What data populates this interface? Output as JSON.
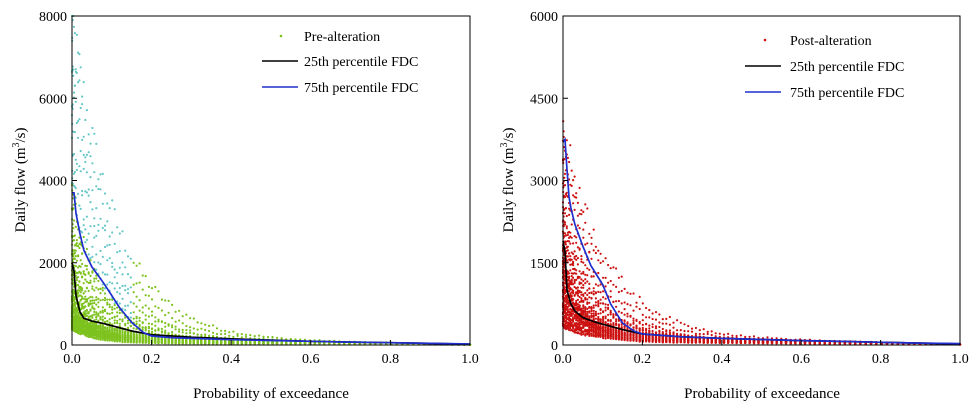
{
  "chart_data": [
    {
      "type": "line",
      "panel": "left",
      "xlabel": "Probability of exceedance",
      "ylabel_main": "Daily flow (m",
      "ylabel_sup": "3",
      "ylabel_tail": "/s)",
      "xlim": [
        0,
        1.0
      ],
      "ylim": [
        0,
        8000
      ],
      "xticks": [
        0.0,
        0.2,
        0.4,
        0.6,
        0.8,
        1.0
      ],
      "xtick_labels": [
        "0.0",
        "0.2",
        "0.4",
        "0.6",
        "0.8",
        "1.0"
      ],
      "yticks": [
        0,
        2000,
        4000,
        6000,
        8000
      ],
      "ytick_labels": [
        "0",
        "2000",
        "4000",
        "6000",
        "8000"
      ],
      "grid": false,
      "legend_position": "top-right",
      "scatter_series": {
        "name": "Pre-alteration",
        "color": "#7dc21e",
        "peaks": [
          7800,
          7000,
          6200,
          5400,
          4600,
          3800,
          3600,
          3200,
          2900,
          2600,
          2400,
          2200,
          2000,
          1900,
          1800,
          1700,
          1600,
          1500,
          1400,
          1300,
          1200,
          1150,
          1100,
          1050,
          1000,
          950,
          900,
          850,
          800,
          780,
          760,
          740,
          720,
          700,
          680,
          660,
          640,
          620,
          600,
          580,
          560,
          540,
          520,
          500,
          480,
          460,
          440,
          420,
          400,
          380
        ],
        "decays": [
          9,
          10,
          11,
          11,
          12,
          12,
          13,
          13,
          14,
          14,
          15,
          15,
          16,
          16,
          17,
          17,
          18,
          18,
          19,
          19,
          20,
          20,
          21,
          21,
          22,
          22,
          23,
          23,
          24,
          24
        ],
        "tail": [
          180,
          150,
          120,
          100,
          80,
          60,
          40
        ],
        "highlight_color": "#66c6c6"
      },
      "series": [
        {
          "name": "25th percentile FDC",
          "color": "#000000",
          "x": [
            0.0,
            0.005,
            0.01,
            0.02,
            0.03,
            0.05,
            0.08,
            0.1,
            0.15,
            0.2,
            0.3,
            0.4,
            0.5,
            0.6,
            0.7,
            0.8,
            0.9,
            1.0
          ],
          "y": [
            2000,
            1800,
            1200,
            800,
            650,
            580,
            520,
            470,
            340,
            250,
            190,
            150,
            120,
            90,
            70,
            55,
            40,
            20
          ]
        },
        {
          "name": "75th percentile FDC",
          "color": "#1f2ecc",
          "x": [
            0.0,
            0.005,
            0.01,
            0.02,
            0.03,
            0.05,
            0.08,
            0.1,
            0.12,
            0.15,
            0.18,
            0.2,
            0.25,
            0.3,
            0.4,
            0.5,
            0.6,
            0.7,
            0.8,
            0.9,
            1.0
          ],
          "y": [
            3700,
            3700,
            3200,
            2700,
            2300,
            1900,
            1500,
            1200,
            900,
            550,
            300,
            220,
            180,
            160,
            130,
            110,
            90,
            70,
            55,
            40,
            25
          ]
        }
      ]
    },
    {
      "type": "line",
      "panel": "right",
      "xlabel": "Probability of exceedance",
      "ylabel_main": "Daily flow (m",
      "ylabel_sup": "3",
      "ylabel_tail": "/s)",
      "xlim": [
        0,
        1.0
      ],
      "ylim": [
        0,
        6000
      ],
      "xticks": [
        0.0,
        0.2,
        0.4,
        0.6,
        0.8,
        1.0
      ],
      "xtick_labels": [
        "0.0",
        "0.2",
        "0.4",
        "0.6",
        "0.8",
        "1.0"
      ],
      "yticks": [
        0,
        1500,
        3000,
        4500,
        6000
      ],
      "ytick_labels": [
        "0",
        "1500",
        "3000",
        "4500",
        "6000"
      ],
      "grid": false,
      "legend_position": "top-right",
      "scatter_series": {
        "name": "Post-alteration",
        "color": "#cc1111",
        "peaks": [
          3900,
          3500,
          3100,
          2800,
          2600,
          2400,
          2200,
          2100,
          2000,
          1900,
          1800,
          1700,
          1600,
          1500,
          1450,
          1400,
          1350,
          1300,
          1250,
          1200,
          1150,
          1100,
          1050,
          1000,
          950,
          900,
          850,
          800,
          760,
          720,
          680,
          640,
          600,
          560,
          520,
          480,
          440,
          400,
          360,
          320
        ],
        "decays": [
          9,
          10,
          11,
          11,
          12,
          12,
          13,
          13,
          14,
          14,
          15,
          15,
          16,
          16,
          17,
          17,
          18,
          18,
          19,
          19,
          20,
          20,
          21,
          21,
          22
        ],
        "tail": [
          170,
          140,
          110,
          90,
          70,
          50
        ],
        "highlight_color": "#cc1111"
      },
      "series": [
        {
          "name": "25th percentile FDC",
          "color": "#000000",
          "x": [
            0.0,
            0.005,
            0.01,
            0.02,
            0.03,
            0.05,
            0.08,
            0.1,
            0.15,
            0.2,
            0.3,
            0.4,
            0.5,
            0.6,
            0.7,
            0.8,
            0.9,
            1.0
          ],
          "y": [
            1900,
            1700,
            1000,
            750,
            620,
            500,
            420,
            380,
            280,
            200,
            150,
            120,
            100,
            80,
            65,
            50,
            35,
            20
          ]
        },
        {
          "name": "75th percentile FDC",
          "color": "#1f2ecc",
          "x": [
            0.0,
            0.005,
            0.01,
            0.015,
            0.02,
            0.03,
            0.05,
            0.07,
            0.1,
            0.12,
            0.15,
            0.18,
            0.2,
            0.3,
            0.4,
            0.5,
            0.6,
            0.7,
            0.8,
            0.9,
            1.0
          ],
          "y": [
            3700,
            3750,
            3200,
            2700,
            2500,
            2200,
            1800,
            1450,
            1100,
            750,
            400,
            250,
            200,
            150,
            120,
            100,
            80,
            65,
            50,
            35,
            25
          ]
        }
      ]
    }
  ]
}
